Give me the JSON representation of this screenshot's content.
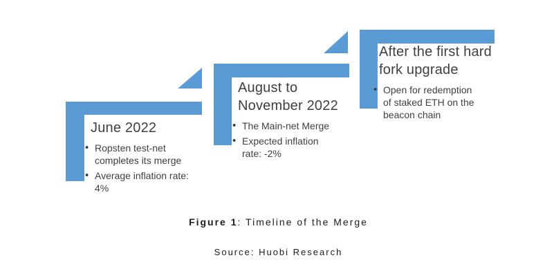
{
  "figure": {
    "caption_label": "Figure 1",
    "caption_text": ": Timeline of the Merge",
    "source": "Source: Huobi Research"
  },
  "colors": {
    "accent_blue": "#5B9BD5",
    "body_text": "#3F3F3F",
    "caption_text": "#1B1B1B"
  },
  "steps": [
    {
      "title": "June 2022",
      "bullets": [
        "Ropsten test-net completes its merge",
        "Average inflation rate: 4%"
      ]
    },
    {
      "title": "August to November 2022",
      "bullets": [
        "The Main-net Merge",
        "Expected inflation rate: -2%"
      ]
    },
    {
      "title": "After the first hard fork upgrade",
      "bullets": [
        "Open for redemption of staked ETH on the beacon chain"
      ]
    }
  ]
}
